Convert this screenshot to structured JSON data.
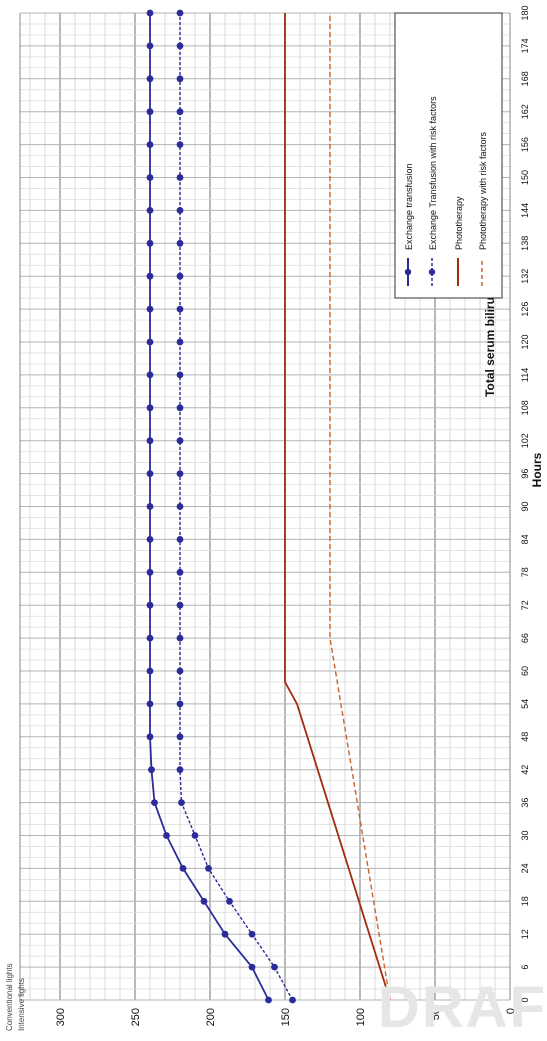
{
  "watermark": "DRAF",
  "chart_data": {
    "type": "line",
    "title": "",
    "xlabel": "Hours",
    "ylabel": "Total serum bilirubin (micromol/L)",
    "xlim": [
      0,
      180
    ],
    "ylim": [
      0,
      350
    ],
    "x_ticks": [
      0,
      6,
      12,
      18,
      24,
      30,
      36,
      42,
      48,
      54,
      60,
      66,
      72,
      78,
      84,
      90,
      96,
      102,
      108,
      114,
      120,
      126,
      132,
      138,
      144,
      150,
      156,
      162,
      168,
      174,
      180
    ],
    "y_ticks": [
      0,
      50,
      100,
      150,
      200,
      250,
      300
    ],
    "y_top_labels": [
      "Conventional lights",
      "Intensive lights"
    ],
    "grid": true,
    "legend_position": "top-right",
    "series": [
      {
        "name": "Exchange transfusion",
        "style": "solid-markers",
        "color": "#2b2b9a",
        "x": [
          0,
          6,
          12,
          18,
          24,
          30,
          36,
          42,
          48,
          54,
          60,
          66,
          72,
          78,
          84,
          90,
          96,
          102,
          108,
          114,
          120,
          126,
          132,
          138,
          144,
          150,
          156,
          162,
          168,
          174,
          180
        ],
        "values": [
          161,
          172,
          190,
          204,
          218,
          229,
          237,
          239,
          240,
          240,
          240,
          240,
          240,
          240,
          240,
          240,
          240,
          240,
          240,
          240,
          240,
          240,
          240,
          240,
          240,
          240,
          240,
          240,
          240,
          240,
          240
        ]
      },
      {
        "name": "Exchange Transfusion with risk factors",
        "style": "dashed-markers",
        "color": "#2b2b9a",
        "x": [
          0,
          6,
          12,
          18,
          24,
          30,
          36,
          42,
          48,
          54,
          60,
          66,
          72,
          78,
          84,
          90,
          96,
          102,
          108,
          114,
          120,
          126,
          132,
          138,
          144,
          150,
          156,
          162,
          168,
          174,
          180
        ],
        "values": [
          145,
          157,
          172,
          187,
          201,
          210,
          219,
          220,
          220,
          220,
          220,
          220,
          220,
          220,
          220,
          220,
          220,
          220,
          220,
          220,
          220,
          220,
          220,
          220,
          220,
          220,
          220,
          220,
          220,
          220,
          220
        ]
      },
      {
        "name": "Phototherapy",
        "style": "solid",
        "color": "#a32a0c",
        "x": [
          0,
          54,
          58,
          180
        ],
        "values": [
          80,
          142,
          150,
          150
        ]
      },
      {
        "name": "Phototherapy with risk factors",
        "style": "dashed",
        "color": "#c8632a",
        "x": [
          0,
          66,
          180
        ],
        "values": [
          80,
          120,
          120
        ]
      }
    ]
  }
}
